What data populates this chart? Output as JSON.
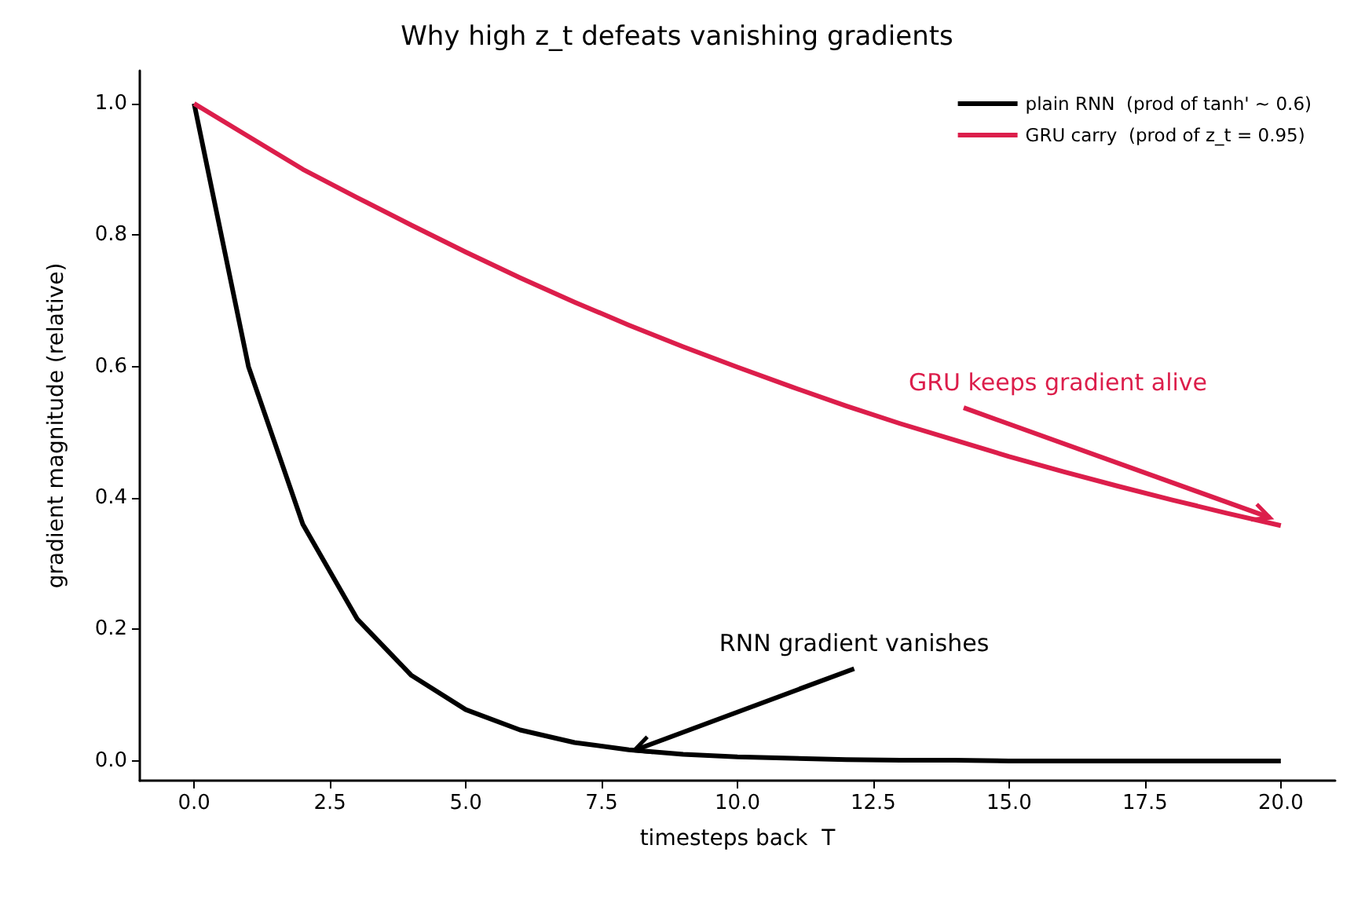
{
  "chart_data": {
    "type": "line",
    "title": "Why high z_t defeats vanishing gradients",
    "xlabel": "timesteps back  T",
    "ylabel": "gradient magnitude (relative)",
    "x": [
      0,
      1,
      2,
      3,
      4,
      5,
      6,
      7,
      8,
      9,
      10,
      11,
      12,
      13,
      14,
      15,
      16,
      17,
      18,
      19,
      20
    ],
    "series": [
      {
        "name": "plain RNN  (prod of tanh' ~ 0.6)",
        "color": "#000000",
        "values": [
          1,
          0.6,
          0.36,
          0.216,
          0.13,
          0.078,
          0.047,
          0.028,
          0.017,
          0.01,
          0.006,
          0.004,
          0.002,
          0.001,
          0.001,
          0,
          0,
          0,
          0,
          0,
          0
        ]
      },
      {
        "name": "GRU carry  (prod of z_t = 0.95)",
        "color": "#dc1e4b",
        "values": [
          1,
          0.95,
          0.9,
          0.857,
          0.815,
          0.774,
          0.735,
          0.698,
          0.663,
          0.63,
          0.599,
          0.569,
          0.54,
          0.513,
          0.488,
          0.463,
          0.44,
          0.418,
          0.397,
          0.377,
          0.358
        ]
      }
    ],
    "annotations": [
      {
        "text": "RNN gradient vanishes",
        "x": 8.1,
        "y": 0.016
      },
      {
        "text": "GRU keeps gradient alive",
        "x": 19.8,
        "y": 0.37
      }
    ],
    "xlim": [
      -1,
      21
    ],
    "xticks": [
      {
        "value": 0,
        "label": "0.0"
      },
      {
        "value": 2.5,
        "label": "2.5"
      },
      {
        "value": 5,
        "label": "5.0"
      },
      {
        "value": 7.5,
        "label": "7.5"
      },
      {
        "value": 10,
        "label": "10.0"
      },
      {
        "value": 12.5,
        "label": "12.5"
      },
      {
        "value": 15,
        "label": "15.0"
      },
      {
        "value": 17.5,
        "label": "17.5"
      },
      {
        "value": 20,
        "label": "20.0"
      }
    ],
    "ylim": [
      -0.03,
      1.05
    ],
    "yticks": [
      {
        "value": 0,
        "label": "0.0"
      },
      {
        "value": 0.2,
        "label": "0.2"
      },
      {
        "value": 0.4,
        "label": "0.4"
      },
      {
        "value": 0.6,
        "label": "0.6"
      },
      {
        "value": 0.8,
        "label": "0.8"
      },
      {
        "value": 1,
        "label": "1.0"
      }
    ],
    "grid": false,
    "legend": "top right",
    "marker": "none",
    "line_style": "solid"
  }
}
